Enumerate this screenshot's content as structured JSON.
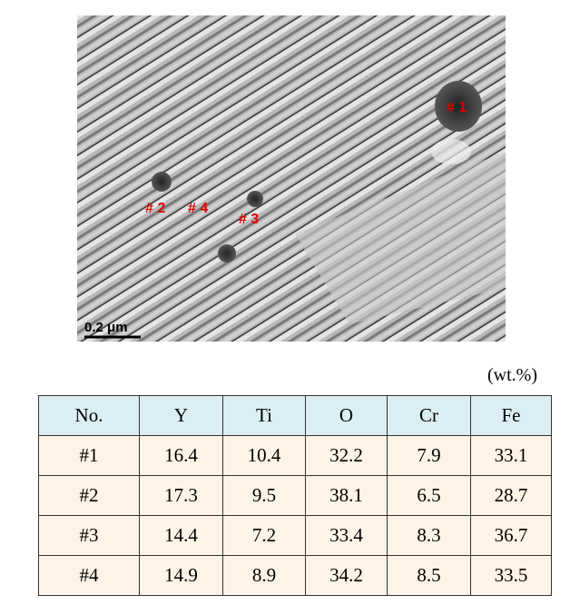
{
  "image": {
    "labels": [
      "# 1",
      "# 2",
      "# 4",
      "# 3"
    ],
    "scale_bar": "0.2 μm"
  },
  "table": {
    "unit": "(wt.%)",
    "header": [
      "No.",
      "Y",
      "Ti",
      "O",
      "Cr",
      "Fe"
    ],
    "rows": [
      [
        "#1",
        "16.4",
        "10.4",
        "32.2",
        "7.9",
        "33.1"
      ],
      [
        "#2",
        "17.3",
        "9.5",
        "38.1",
        "6.5",
        "28.7"
      ],
      [
        "#3",
        "14.4",
        "7.2",
        "33.4",
        "8.3",
        "36.7"
      ],
      [
        "#4",
        "14.9",
        "8.9",
        "34.2",
        "8.5",
        "33.5"
      ]
    ]
  }
}
